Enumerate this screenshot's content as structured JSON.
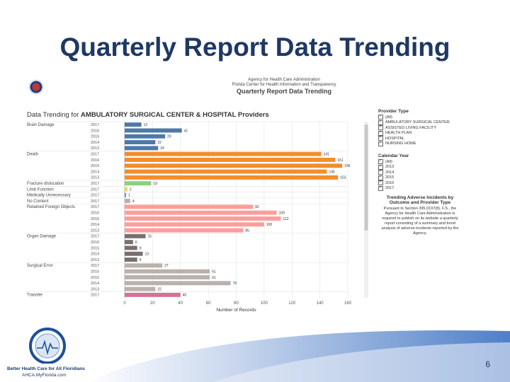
{
  "slide": {
    "title": "Quarterly Report Data Trending",
    "page_number": "6"
  },
  "header": {
    "line1": "Agency for Health Care Administration",
    "line2": "Florida Center for Health Information and Transparency",
    "title": "Quarterly Report Data Trending"
  },
  "chart_title": {
    "prefix": "Data Trending for",
    "subject": "AMBULATORY SURGICAL CENTER & HOSPITAL Providers"
  },
  "sidebar": {
    "provider_type_label": "Provider Type",
    "provider_types": [
      "(All)",
      "AMBULATORY SURGICAL CENTER",
      "ASSISTED LIVING FACILITY",
      "HEALTH PLAN",
      "HOSPITAL",
      "NURSING HOME"
    ],
    "calendar_year_label": "Calendar Year",
    "calendar_years": [
      "(All)",
      "2013",
      "2014",
      "2015",
      "2016",
      "2017"
    ],
    "info_title": "Trending Adverse Incidents by Outcome and Provider Type",
    "info_text": "Pursuant to Section 395.0197(8), F.S., the Agency for Health Care Administration is required to publish on its website a quarterly report consisting of a summary and trend analysis of adverse incidents reported by the Agency."
  },
  "footer": {
    "logo_line1": "Better Health Care for All Floridians",
    "logo_line2": "AHCA.MyFlorida.com"
  },
  "colors": {
    "brain_damage": "#4e79a7",
    "death": "#f28e2b",
    "fracture": "#8cd17d",
    "limb_function": "#e8d84f",
    "mediate": "#4aa3a0",
    "no_concern": "#bab0ac",
    "foreign_objects": "#ff9d9a",
    "organ_damage": "#79706e",
    "surgical_error": "#bab0ac",
    "transfer": "#d37295"
  },
  "chart_data": {
    "type": "bar",
    "orientation": "horizontal",
    "xlabel": "Number of Records",
    "xlim": [
      0,
      160
    ],
    "xticks": [
      0,
      20,
      40,
      60,
      80,
      100,
      120,
      140,
      160
    ],
    "grid": true,
    "groups": [
      {
        "name": "Brain Damage",
        "color": "brain_damage",
        "rows": [
          {
            "year": "2017",
            "value": 12
          },
          {
            "year": "2016",
            "value": 41
          },
          {
            "year": "2015",
            "value": 29
          },
          {
            "year": "2014",
            "value": 22
          },
          {
            "year": "2013",
            "value": 24
          }
        ]
      },
      {
        "name": "Death",
        "color": "death",
        "rows": [
          {
            "year": "2017",
            "value": 141
          },
          {
            "year": "2016",
            "value": 151
          },
          {
            "year": "2015",
            "value": 156
          },
          {
            "year": "2014",
            "value": 145
          },
          {
            "year": "2013",
            "value": 153
          }
        ]
      },
      {
        "name": "Fracture dislocation",
        "color": "fracture",
        "rows": [
          {
            "year": "2017",
            "value": 19
          }
        ]
      },
      {
        "name": "Limb Function",
        "color": "limb_function",
        "rows": [
          {
            "year": "2017",
            "value": 2
          }
        ]
      },
      {
        "name": "Medically Unnecessary",
        "color": "mediate",
        "rows": [
          {
            "year": "2017",
            "value": 1
          }
        ]
      },
      {
        "name": "No Content",
        "color": "no_concern",
        "rows": [
          {
            "year": "2017",
            "value": 4
          }
        ]
      },
      {
        "name": "Retained Foreign Objects",
        "color": "foreign_objects",
        "rows": [
          {
            "year": "2017",
            "value": 92
          },
          {
            "year": "2016",
            "value": 109
          },
          {
            "year": "2015",
            "value": 112
          },
          {
            "year": "2014",
            "value": 100
          },
          {
            "year": "2013",
            "value": 85
          }
        ]
      },
      {
        "name": "Organ Damage",
        "color": "organ_damage",
        "rows": [
          {
            "year": "2017",
            "value": 15
          },
          {
            "year": "2016",
            "value": 6
          },
          {
            "year": "2015",
            "value": 9
          },
          {
            "year": "2014",
            "value": 13
          },
          {
            "year": "2013",
            "value": 9
          }
        ]
      },
      {
        "name": "Surgical Error",
        "color": "surgical_error",
        "rows": [
          {
            "year": "2017",
            "value": 27
          },
          {
            "year": "2016",
            "value": 61
          },
          {
            "year": "2015",
            "value": 61
          },
          {
            "year": "2014",
            "value": 76
          },
          {
            "year": "2013",
            "value": 22
          }
        ]
      },
      {
        "name": "Transfer",
        "color": "transfer",
        "rows": [
          {
            "year": "2017",
            "value": 40
          }
        ]
      }
    ]
  }
}
